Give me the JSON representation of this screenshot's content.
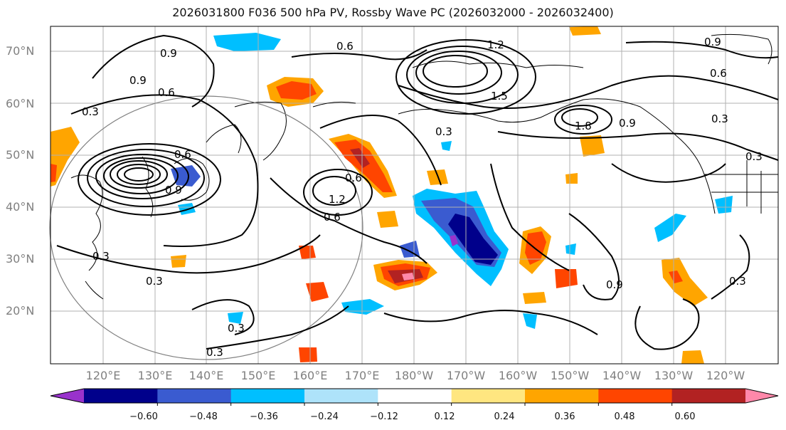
{
  "title": "2026031800 F036 500 hPa PV, Rossby Wave PC (2026032000 - 2026032400)",
  "latitude_labels": [
    "70°N",
    "60°N",
    "50°N",
    "40°N",
    "30°N",
    "20°N"
  ],
  "longitude_labels": [
    "120°E",
    "130°E",
    "140°E",
    "150°E",
    "160°E",
    "170°E",
    "180°W",
    "170°W",
    "160°W",
    "150°W",
    "140°W",
    "130°W",
    "120°W"
  ],
  "contour_labels": [
    "0.3",
    "0.6",
    "0.9",
    "1.2",
    "1.5",
    "1.8"
  ],
  "colorbar": {
    "ticks": [
      "−0.60",
      "−0.48",
      "−0.36",
      "−0.24",
      "−0.12",
      "0.12",
      "0.24",
      "0.36",
      "0.48",
      "0.60"
    ],
    "colors": [
      "#9932cc",
      "#00008b",
      "#3a5bd0",
      "#00bfff",
      "#aee3fa",
      "#ffffff",
      "#ffe680",
      "#ffa500",
      "#ff4500",
      "#b22222",
      "#ff88aa"
    ]
  },
  "colors": {
    "contour": "#000000",
    "grid": "#b0b0b0",
    "coast": "#000000",
    "axis_label": "#808080"
  }
}
